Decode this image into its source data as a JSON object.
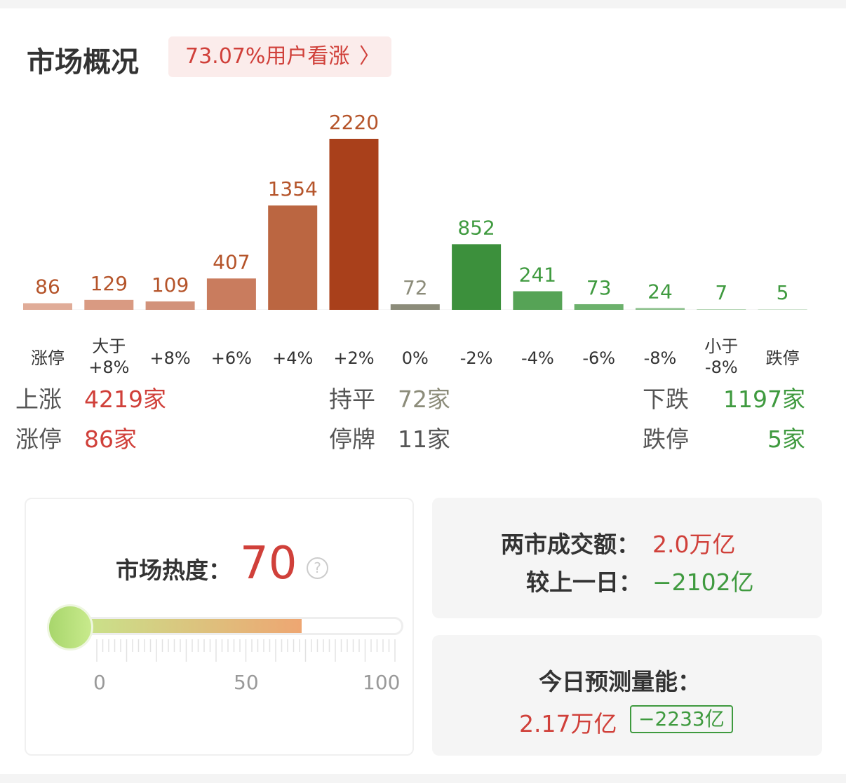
{
  "header": {
    "title": "市场概况",
    "sentiment_label": "73.07%用户看涨",
    "chevron_icon": "chevron-right-icon"
  },
  "chart_data": {
    "type": "bar",
    "categories": [
      "涨停",
      "大于\n+8%",
      "+8%",
      "+6%",
      "+4%",
      "+2%",
      "0%",
      "-2%",
      "-4%",
      "-6%",
      "-8%",
      "小于\n-8%",
      "跌停"
    ],
    "values": [
      86,
      129,
      109,
      407,
      1354,
      2220,
      72,
      852,
      241,
      73,
      24,
      7,
      5
    ],
    "bar_colors": [
      "#e0ac98",
      "#d99a82",
      "#d2927a",
      "#c97c5e",
      "#bb6641",
      "#a9401b",
      "#8c8c7a",
      "#3c903c",
      "#56a356",
      "#6cb16c",
      "#8fc28f",
      "#b8d8b8",
      "#d3e5d3"
    ],
    "label_colors": {
      "up": "#b5542a",
      "flat": "#8c8c7a",
      "down": "#3f9a3f"
    }
  },
  "stats": {
    "up": {
      "label": "上涨",
      "value": "4219家"
    },
    "limit_up": {
      "label": "涨停",
      "value": "86家"
    },
    "flat": {
      "label": "持平",
      "value": "72家"
    },
    "suspended": {
      "label": "停牌",
      "value": "11家"
    },
    "down": {
      "label": "下跌",
      "value": "1197家"
    },
    "limit_down": {
      "label": "跌停",
      "value": "5家"
    }
  },
  "heat": {
    "label": "市场热度：",
    "value": "70",
    "help": "?",
    "level": 70,
    "scale": [
      "0",
      "50",
      "100"
    ]
  },
  "turnover": {
    "label": "两市成交额：",
    "value": "2.0万亿",
    "cmp_label": "较上一日：",
    "cmp_value": "−2102亿"
  },
  "forecast": {
    "label": "今日预测量能：",
    "value": "2.17万亿",
    "delta": "−2233亿"
  },
  "colors": {
    "up": "#d0403a",
    "down": "#3f9a3f"
  }
}
